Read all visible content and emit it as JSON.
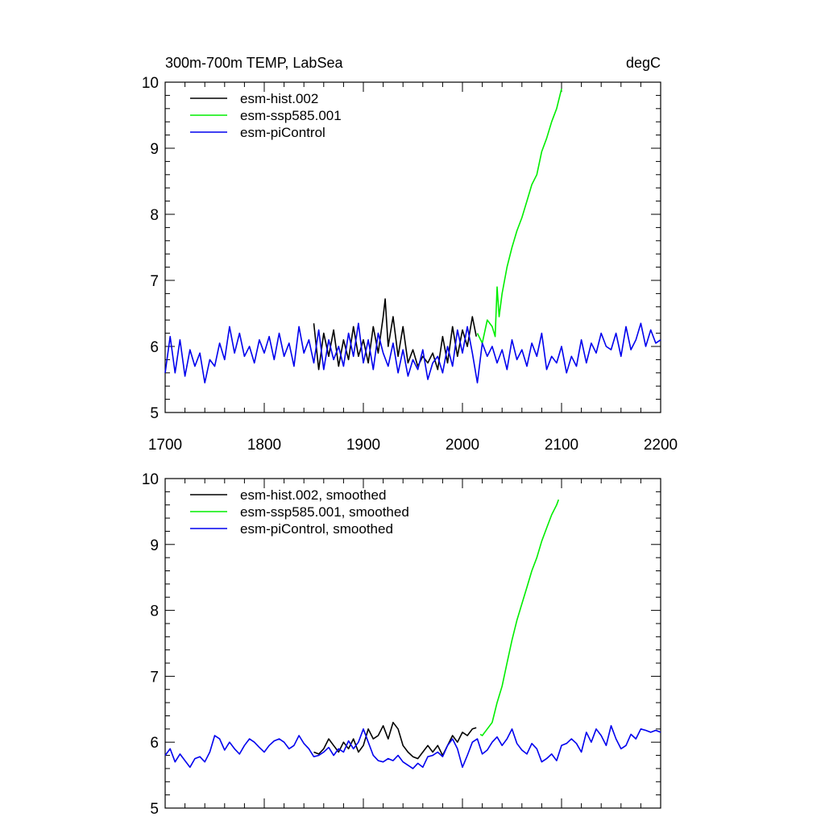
{
  "title_left": "300m-700m TEMP, LabSea",
  "title_right": "degC",
  "colors": {
    "hist": "#000000",
    "ssp": "#00ee00",
    "pic": "#0000ee"
  },
  "chart_data": [
    {
      "type": "line",
      "xlim": [
        1700,
        2200
      ],
      "ylim": [
        5,
        10
      ],
      "x_ticks": [
        "1700",
        "1800",
        "1900",
        "2000",
        "2100",
        "2200"
      ],
      "y_ticks": [
        "5",
        "6",
        "7",
        "8",
        "9",
        "10"
      ],
      "legend_placement": "top-left",
      "series": [
        {
          "name": "esm-hist.002",
          "color": "#000000",
          "x": [
            1850,
            1855,
            1860,
            1865,
            1870,
            1875,
            1880,
            1885,
            1890,
            1895,
            1900,
            1905,
            1910,
            1915,
            1920,
            1922,
            1925,
            1930,
            1935,
            1940,
            1945,
            1950,
            1955,
            1960,
            1965,
            1970,
            1975,
            1980,
            1985,
            1990,
            1995,
            2000,
            2005,
            2010,
            2014
          ],
          "y": [
            6.35,
            5.65,
            6.2,
            5.85,
            6.25,
            5.7,
            6.1,
            5.8,
            6.3,
            5.85,
            6.1,
            5.75,
            6.3,
            5.9,
            6.45,
            6.72,
            6.0,
            6.45,
            5.85,
            6.3,
            5.75,
            5.95,
            5.7,
            5.85,
            5.75,
            5.9,
            5.65,
            6.15,
            5.75,
            6.3,
            5.85,
            6.25,
            6.0,
            6.45,
            6.15
          ]
        },
        {
          "name": "esm-ssp585.001",
          "color": "#00ee00",
          "x": [
            2015,
            2020,
            2025,
            2030,
            2033,
            2035,
            2037,
            2040,
            2045,
            2050,
            2055,
            2060,
            2065,
            2070,
            2075,
            2080,
            2085,
            2090,
            2095,
            2100
          ],
          "y": [
            6.2,
            6.05,
            6.4,
            6.3,
            6.15,
            6.9,
            6.45,
            6.8,
            7.2,
            7.5,
            7.75,
            7.95,
            8.2,
            8.45,
            8.6,
            8.95,
            9.15,
            9.4,
            9.6,
            9.9
          ]
        },
        {
          "name": "esm-piControl",
          "color": "#0000ee",
          "x": [
            1700,
            1705,
            1710,
            1715,
            1720,
            1725,
            1730,
            1735,
            1740,
            1745,
            1750,
            1755,
            1760,
            1765,
            1770,
            1775,
            1780,
            1785,
            1790,
            1795,
            1800,
            1805,
            1810,
            1815,
            1820,
            1825,
            1830,
            1835,
            1840,
            1845,
            1850,
            1855,
            1860,
            1865,
            1870,
            1875,
            1880,
            1885,
            1890,
            1895,
            1900,
            1905,
            1910,
            1915,
            1920,
            1925,
            1930,
            1935,
            1940,
            1945,
            1950,
            1955,
            1960,
            1965,
            1970,
            1975,
            1980,
            1985,
            1990,
            1995,
            2000,
            2005,
            2010,
            2015,
            2020,
            2025,
            2030,
            2035,
            2040,
            2045,
            2050,
            2055,
            2060,
            2065,
            2070,
            2075,
            2080,
            2085,
            2090,
            2095,
            2100,
            2105,
            2110,
            2115,
            2120,
            2125,
            2130,
            2135,
            2140,
            2145,
            2150,
            2155,
            2160,
            2165,
            2170,
            2175,
            2180,
            2185,
            2190,
            2195,
            2200
          ],
          "y": [
            5.6,
            6.15,
            5.6,
            6.1,
            5.55,
            5.95,
            5.7,
            5.9,
            5.45,
            5.8,
            5.7,
            6.05,
            5.8,
            6.3,
            5.9,
            6.2,
            5.85,
            6.0,
            5.75,
            6.1,
            5.9,
            6.15,
            5.8,
            6.2,
            5.85,
            6.05,
            5.7,
            6.3,
            5.9,
            6.1,
            5.75,
            6.25,
            5.65,
            6.1,
            5.8,
            6.0,
            5.7,
            6.2,
            5.85,
            6.35,
            5.75,
            6.1,
            5.65,
            6.2,
            5.9,
            5.7,
            6.05,
            5.6,
            5.95,
            5.55,
            5.8,
            5.65,
            5.95,
            5.5,
            5.75,
            5.85,
            5.6,
            6.0,
            5.7,
            6.25,
            5.9,
            6.3,
            5.9,
            5.45,
            6.05,
            5.85,
            6.0,
            5.75,
            5.95,
            5.65,
            6.1,
            5.8,
            5.95,
            5.7,
            6.05,
            5.85,
            6.2,
            5.65,
            5.85,
            5.75,
            6.0,
            5.6,
            5.85,
            5.7,
            6.1,
            5.75,
            6.05,
            5.9,
            6.2,
            6.0,
            5.95,
            6.2,
            5.85,
            6.3,
            5.95,
            6.1,
            6.35,
            6.0,
            6.25,
            6.05,
            6.1
          ]
        }
      ]
    },
    {
      "type": "line",
      "xlim": [
        1700,
        2200
      ],
      "ylim": [
        5,
        10
      ],
      "x_ticks": [],
      "y_ticks": [
        "5",
        "6",
        "7",
        "8",
        "9",
        "10"
      ],
      "legend_placement": "top-left",
      "series": [
        {
          "name": "esm-hist.002, smoothed",
          "color": "#000000",
          "x": [
            1850,
            1855,
            1860,
            1865,
            1870,
            1875,
            1880,
            1885,
            1890,
            1895,
            1900,
            1905,
            1910,
            1915,
            1920,
            1925,
            1930,
            1935,
            1940,
            1945,
            1950,
            1955,
            1960,
            1965,
            1970,
            1975,
            1980,
            1985,
            1990,
            1995,
            2000,
            2005,
            2010,
            2014
          ],
          "y": [
            5.85,
            5.82,
            5.9,
            6.05,
            5.95,
            5.85,
            6.0,
            5.9,
            6.05,
            5.85,
            5.95,
            6.2,
            6.05,
            6.1,
            6.25,
            6.05,
            6.3,
            6.2,
            5.95,
            5.85,
            5.78,
            5.75,
            5.85,
            5.95,
            5.85,
            5.95,
            5.8,
            5.95,
            6.1,
            6.0,
            6.15,
            6.1,
            6.2,
            6.22
          ]
        },
        {
          "name": "esm-ssp585.001, smoothed",
          "color": "#00ee00",
          "x": [
            2018,
            2020,
            2025,
            2030,
            2035,
            2040,
            2045,
            2050,
            2055,
            2060,
            2065,
            2070,
            2075,
            2080,
            2085,
            2090,
            2095,
            2097
          ],
          "y": [
            6.12,
            6.1,
            6.2,
            6.3,
            6.6,
            6.85,
            7.2,
            7.55,
            7.85,
            8.1,
            8.35,
            8.6,
            8.8,
            9.05,
            9.25,
            9.45,
            9.6,
            9.68
          ]
        },
        {
          "name": "esm-piControl, smoothed",
          "color": "#0000ee",
          "x": [
            1700,
            1705,
            1710,
            1715,
            1720,
            1725,
            1730,
            1735,
            1740,
            1745,
            1750,
            1755,
            1760,
            1765,
            1770,
            1775,
            1780,
            1785,
            1790,
            1795,
            1800,
            1805,
            1810,
            1815,
            1820,
            1825,
            1830,
            1835,
            1840,
            1845,
            1850,
            1855,
            1860,
            1865,
            1870,
            1875,
            1880,
            1885,
            1890,
            1895,
            1900,
            1905,
            1910,
            1915,
            1920,
            1925,
            1930,
            1935,
            1940,
            1945,
            1950,
            1955,
            1960,
            1965,
            1970,
            1975,
            1980,
            1985,
            1990,
            1995,
            2000,
            2005,
            2010,
            2015,
            2020,
            2025,
            2030,
            2035,
            2040,
            2045,
            2050,
            2055,
            2060,
            2065,
            2070,
            2075,
            2080,
            2085,
            2090,
            2095,
            2100,
            2105,
            2110,
            2115,
            2120,
            2125,
            2130,
            2135,
            2140,
            2145,
            2150,
            2155,
            2160,
            2165,
            2170,
            2175,
            2180,
            2185,
            2190,
            2195,
            2200
          ],
          "y": [
            5.8,
            5.9,
            5.7,
            5.82,
            5.72,
            5.62,
            5.75,
            5.78,
            5.7,
            5.85,
            6.1,
            6.05,
            5.88,
            6.0,
            5.9,
            5.82,
            5.95,
            6.05,
            6.0,
            5.92,
            5.85,
            5.95,
            6.02,
            6.05,
            6.0,
            5.9,
            5.95,
            6.1,
            5.98,
            5.9,
            5.78,
            5.8,
            5.85,
            5.92,
            5.8,
            5.9,
            5.85,
            6.02,
            5.9,
            6.0,
            6.2,
            6.0,
            5.8,
            5.72,
            5.7,
            5.75,
            5.72,
            5.8,
            5.7,
            5.65,
            5.6,
            5.68,
            5.62,
            5.78,
            5.8,
            5.85,
            5.78,
            5.95,
            6.05,
            5.9,
            5.62,
            5.8,
            6.0,
            6.05,
            5.82,
            5.88,
            6.0,
            6.08,
            5.95,
            6.05,
            6.2,
            5.98,
            5.88,
            5.82,
            5.98,
            5.9,
            5.7,
            5.75,
            5.82,
            5.72,
            5.95,
            5.98,
            6.05,
            5.98,
            5.85,
            6.15,
            6.0,
            6.2,
            6.1,
            5.95,
            6.25,
            6.05,
            5.9,
            5.95,
            6.12,
            6.05,
            6.2,
            6.18,
            6.15,
            6.18,
            6.15
          ]
        }
      ]
    }
  ]
}
